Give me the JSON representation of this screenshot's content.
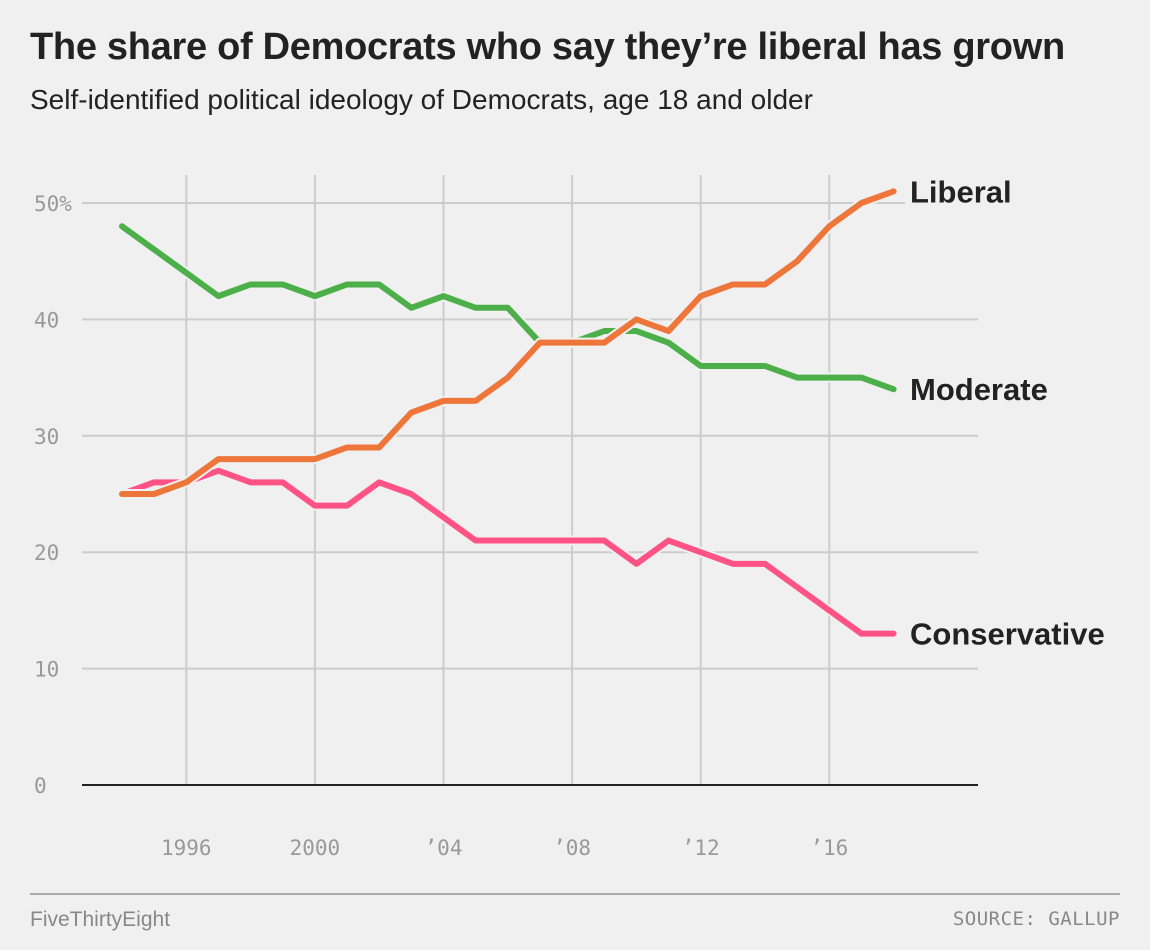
{
  "title": "The share of Democrats who say they’re liberal has grown",
  "subtitle": "Self-identified political ideology of Democrats, age 18 and older",
  "footer": {
    "brand": "FiveThirtyEight",
    "source": "SOURCE: GALLUP"
  },
  "chart_data": {
    "type": "line",
    "x": [
      1994,
      1995,
      1996,
      1997,
      1998,
      1999,
      2000,
      2001,
      2002,
      2003,
      2004,
      2005,
      2006,
      2007,
      2008,
      2009,
      2010,
      2011,
      2012,
      2013,
      2014,
      2015,
      2016,
      2017,
      2018
    ],
    "series": [
      {
        "name": "Conservative",
        "color": "#ff5386",
        "values": [
          25,
          26,
          26,
          27,
          26,
          26,
          24,
          24,
          26,
          25,
          23,
          21,
          21,
          21,
          21,
          21,
          19,
          21,
          20,
          19,
          19,
          17,
          15,
          13,
          13
        ]
      },
      {
        "name": "Moderate",
        "color": "#4caf4a",
        "values": [
          48,
          46,
          44,
          42,
          43,
          43,
          42,
          43,
          43,
          41,
          42,
          41,
          41,
          38,
          38,
          39,
          39,
          38,
          36,
          36,
          36,
          35,
          35,
          35,
          34
        ]
      },
      {
        "name": "Liberal",
        "color": "#ee763b",
        "values": [
          25,
          25,
          26,
          28,
          28,
          28,
          28,
          29,
          29,
          32,
          33,
          33,
          35,
          38,
          38,
          38,
          40,
          39,
          42,
          43,
          43,
          45,
          48,
          50,
          51
        ]
      }
    ],
    "ylim": [
      0,
      50
    ],
    "xlim": [
      1994,
      2018
    ],
    "yticks": [
      {
        "v": 0,
        "label": "0"
      },
      {
        "v": 10,
        "label": "10"
      },
      {
        "v": 20,
        "label": "20"
      },
      {
        "v": 30,
        "label": "30"
      },
      {
        "v": 40,
        "label": "40"
      },
      {
        "v": 50,
        "label": "50%"
      }
    ],
    "xticks": [
      {
        "v": 1996,
        "label": "1996"
      },
      {
        "v": 2000,
        "label": "2000"
      },
      {
        "v": 2004,
        "label": "’04"
      },
      {
        "v": 2008,
        "label": "’08"
      },
      {
        "v": 2012,
        "label": "’12"
      },
      {
        "v": 2016,
        "label": "’16"
      }
    ],
    "grid": true,
    "legend": "direct labels at line ends"
  }
}
